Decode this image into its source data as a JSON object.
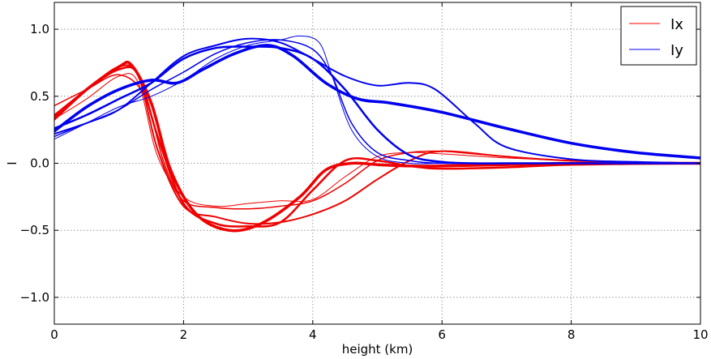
{
  "chart_data": {
    "type": "line",
    "title": "",
    "xlabel": "height (km)",
    "ylabel": "I",
    "xlim": [
      0,
      10
    ],
    "ylim": [
      -1.2,
      1.2
    ],
    "xticks": [
      0,
      2,
      4,
      6,
      8,
      10
    ],
    "xtick_labels": [
      "0",
      "2",
      "4",
      "6",
      "8",
      "10"
    ],
    "yticks": [
      -1.0,
      -0.5,
      0.0,
      0.5,
      1.0
    ],
    "ytick_labels": [
      "−1.0",
      "−0.5",
      "0.0",
      "0.5",
      "1.0"
    ],
    "grid": true,
    "legend": {
      "placement": "top-right",
      "entries": [
        {
          "label": "Ix",
          "color": "#ff0000"
        },
        {
          "label": "Iy",
          "color": "#0000ff"
        }
      ]
    },
    "series": [
      {
        "group": "Ix",
        "color": "#ee0000",
        "width": 1.0,
        "x": [
          0,
          0.5,
          1.0,
          1.3,
          1.6,
          2.0,
          2.5,
          3.0,
          3.5,
          4.0,
          4.5,
          5.0,
          5.5,
          6.0,
          7.0,
          8.0,
          9.0,
          10.0
        ],
        "y": [
          0.33,
          0.48,
          0.65,
          0.6,
          0.05,
          -0.25,
          -0.32,
          -0.3,
          -0.28,
          -0.27,
          -0.1,
          0.05,
          0.08,
          0.07,
          0.04,
          0.02,
          0.01,
          0.0
        ]
      },
      {
        "group": "Ix",
        "color": "#ee0000",
        "width": 1.5,
        "x": [
          0,
          0.5,
          1.0,
          1.4,
          1.7,
          2.0,
          2.5,
          3.0,
          3.5,
          4.0,
          4.5,
          5.0,
          5.5,
          6.0,
          6.5,
          7.0,
          8.0,
          10.0
        ],
        "y": [
          0.43,
          0.55,
          0.66,
          0.5,
          0.0,
          -0.28,
          -0.33,
          -0.34,
          -0.32,
          -0.28,
          -0.15,
          0.02,
          0.08,
          0.09,
          0.07,
          0.05,
          0.02,
          0.0
        ]
      },
      {
        "group": "Ix",
        "color": "#ee0000",
        "width": 2.0,
        "x": [
          0,
          0.5,
          1.0,
          1.3,
          1.6,
          2.0,
          2.5,
          3.0,
          3.5,
          4.0,
          4.5,
          5.0,
          5.5,
          6.0,
          7.0,
          8.0,
          10.0
        ],
        "y": [
          0.36,
          0.55,
          0.72,
          0.65,
          0.1,
          -0.32,
          -0.4,
          -0.45,
          -0.44,
          -0.38,
          -0.28,
          -0.12,
          0.02,
          0.09,
          0.05,
          0.02,
          0.0
        ]
      },
      {
        "group": "Ix",
        "color": "#ee0000",
        "width": 2.5,
        "x": [
          0,
          0.5,
          1.0,
          1.3,
          1.6,
          2.0,
          2.5,
          3.0,
          3.5,
          4.0,
          4.5,
          5.0,
          5.5,
          6.0,
          7.0,
          8.0,
          10.0
        ],
        "y": [
          0.35,
          0.55,
          0.7,
          0.66,
          0.2,
          -0.3,
          -0.45,
          -0.47,
          -0.44,
          -0.2,
          0.02,
          0.02,
          -0.02,
          -0.04,
          -0.03,
          -0.01,
          0.0
        ]
      },
      {
        "group": "Ix",
        "color": "#ee0000",
        "width": 3.5,
        "x": [
          0,
          0.5,
          1.0,
          1.2,
          1.5,
          1.8,
          2.2,
          2.7,
          3.2,
          3.8,
          4.2,
          4.6,
          5.0,
          5.5,
          6.0,
          7.0,
          8.0,
          10.0
        ],
        "y": [
          0.33,
          0.55,
          0.72,
          0.73,
          0.45,
          -0.05,
          -0.38,
          -0.5,
          -0.45,
          -0.25,
          -0.05,
          0.0,
          -0.01,
          -0.02,
          -0.02,
          -0.01,
          0.0,
          0.0
        ]
      },
      {
        "group": "Iy",
        "color": "#0000ee",
        "width": 1.0,
        "x": [
          0,
          0.5,
          1.0,
          1.5,
          2.0,
          2.5,
          3.0,
          3.5,
          3.8,
          4.1,
          4.3,
          4.6,
          5.0,
          5.5,
          6.0,
          7.0,
          8.0,
          10.0
        ],
        "y": [
          0.18,
          0.3,
          0.42,
          0.5,
          0.62,
          0.78,
          0.88,
          0.92,
          0.95,
          0.9,
          0.65,
          0.25,
          0.05,
          0.0,
          0.0,
          0.0,
          0.0,
          0.0
        ]
      },
      {
        "group": "Iy",
        "color": "#0000ee",
        "width": 1.5,
        "x": [
          0,
          0.5,
          1.0,
          1.5,
          2.0,
          2.5,
          3.0,
          3.5,
          4.0,
          4.3,
          4.6,
          5.0,
          5.5,
          6.0,
          7.0,
          8.0,
          10.0
        ],
        "y": [
          0.2,
          0.3,
          0.4,
          0.55,
          0.68,
          0.82,
          0.9,
          0.92,
          0.85,
          0.65,
          0.3,
          0.08,
          0.02,
          0.0,
          0.0,
          0.0,
          0.0
        ]
      },
      {
        "group": "Iy",
        "color": "#0000ee",
        "width": 2.0,
        "x": [
          0,
          0.5,
          1.0,
          1.5,
          2.0,
          2.5,
          3.0,
          3.5,
          4.0,
          4.5,
          5.0,
          5.5,
          5.9,
          6.5,
          7.0,
          8.0,
          9.0,
          10.0
        ],
        "y": [
          0.22,
          0.3,
          0.4,
          0.6,
          0.8,
          0.88,
          0.93,
          0.9,
          0.78,
          0.65,
          0.58,
          0.6,
          0.55,
          0.3,
          0.12,
          0.03,
          0.01,
          0.0
        ]
      },
      {
        "group": "Iy",
        "color": "#0000ee",
        "width": 2.5,
        "x": [
          0,
          0.5,
          1.0,
          1.5,
          2.0,
          2.5,
          3.0,
          3.5,
          4.0,
          4.5,
          5.0,
          5.5,
          6.0,
          6.5,
          7.0,
          8.0,
          10.0
        ],
        "y": [
          0.26,
          0.36,
          0.48,
          0.6,
          0.78,
          0.86,
          0.87,
          0.86,
          0.78,
          0.55,
          0.25,
          0.06,
          0.01,
          0.0,
          0.0,
          0.0,
          0.0
        ]
      },
      {
        "group": "Iy",
        "color": "#0000ee",
        "width": 3.5,
        "x": [
          0,
          0.5,
          1.0,
          1.5,
          1.9,
          2.3,
          2.8,
          3.3,
          3.7,
          4.2,
          4.7,
          5.2,
          6.0,
          7.0,
          8.0,
          9.0,
          10.0
        ],
        "y": [
          0.24,
          0.42,
          0.55,
          0.62,
          0.6,
          0.7,
          0.82,
          0.88,
          0.8,
          0.6,
          0.48,
          0.45,
          0.38,
          0.26,
          0.15,
          0.08,
          0.04
        ]
      }
    ]
  }
}
